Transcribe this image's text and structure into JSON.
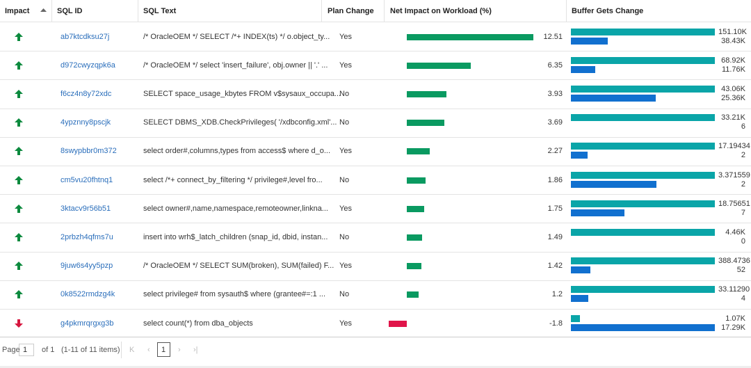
{
  "table": {
    "headers": [
      "Impact",
      "SQL ID",
      "SQL Text",
      "Plan Change",
      "Net Impact on Workload (%)",
      "Buffer Gets Change"
    ],
    "rows": [
      {
        "sql_id": "ab7ktcdksu27j",
        "sql_text": "/* OracleOEM */ SELECT /*+ INDEX(ts) */ o.object_ty...",
        "plan_change": "Yes",
        "net_impact": 12.51,
        "buffer_gets": [
          {
            "value": 151100,
            "label": "151.10K"
          },
          {
            "value": 38430,
            "label": "38.43K"
          }
        ]
      },
      {
        "sql_id": "d972cwyzqpk6a",
        "sql_text": "/* OracleOEM */ select 'insert_failure', obj.owner || '.' ...",
        "plan_change": "Yes",
        "net_impact": 6.35,
        "buffer_gets": [
          {
            "value": 68920,
            "label": "68.92K"
          },
          {
            "value": 11760,
            "label": "11.76K"
          }
        ]
      },
      {
        "sql_id": "f6cz4n8y72xdc",
        "sql_text": "SELECT space_usage_kbytes FROM v$sysaux_occupa...",
        "plan_change": "No",
        "net_impact": 3.93,
        "buffer_gets": [
          {
            "value": 43060,
            "label": "43.06K"
          },
          {
            "value": 25360,
            "label": "25.36K"
          }
        ]
      },
      {
        "sql_id": "4ypznny8pscjk",
        "sql_text": "SELECT DBMS_XDB.CheckPrivileges( '/xdbconfig.xml'...",
        "plan_change": "No",
        "net_impact": 3.69,
        "buffer_gets": [
          {
            "value": 33210,
            "label": "33.21K"
          },
          6
        ]
      },
      {
        "sql_id": "8swypbbr0m372",
        "sql_text": "select order#,columns,types from access$ where d_o...",
        "plan_change": "Yes",
        "net_impact": 2.27,
        "buffer_gets": [
          17.19434,
          2
        ]
      },
      {
        "sql_id": "cm5vu20fhtnq1",
        "sql_text": "select /*+ connect_by_filtering */ privilege#,level fro...",
        "plan_change": "No",
        "net_impact": 1.86,
        "buffer_gets": [
          3.371559,
          2
        ]
      },
      {
        "sql_id": "3ktacv9r56b51",
        "sql_text": "select owner#,name,namespace,remoteowner,linkna...",
        "plan_change": "Yes",
        "net_impact": 1.75,
        "buffer_gets": [
          18.75651,
          7
        ]
      },
      {
        "sql_id": "2prbzh4qfms7u",
        "sql_text": "insert into wrh$_latch_children (snap_id, dbid, instan...",
        "plan_change": "No",
        "net_impact": 1.49,
        "buffer_gets": [
          {
            "value": 4460,
            "label": "4.46K"
          },
          0
        ]
      },
      {
        "sql_id": "9juw6s4yy5pzp",
        "sql_text": "/* OracleOEM */ SELECT SUM(broken), SUM(failed) F...",
        "plan_change": "Yes",
        "net_impact": 1.42,
        "buffer_gets": [
          388.4736,
          52
        ]
      },
      {
        "sql_id": "0k8522rmdzg4k",
        "sql_text": "select privilege# from sysauth$ where (grantee#=:1 ...",
        "plan_change": "No",
        "net_impact": 1.2,
        "buffer_gets": [
          {
            "value": 33.1129,
            "label": "33.11290"
          },
          4
        ]
      },
      {
        "sql_id": "g4pkmrqrgxg3b",
        "sql_text": "select count(*) from dba_objects",
        "plan_change": "Yes",
        "net_impact": -1.8,
        "buffer_gets": [
          {
            "value": 1070,
            "label": "1.07K"
          },
          {
            "value": 17290,
            "label": "17.29K"
          }
        ]
      }
    ]
  },
  "pager": {
    "page_label": "Page",
    "page": 1,
    "of": "of 1",
    "items": "(1-11 of 11 items)",
    "current": 1
  }
}
